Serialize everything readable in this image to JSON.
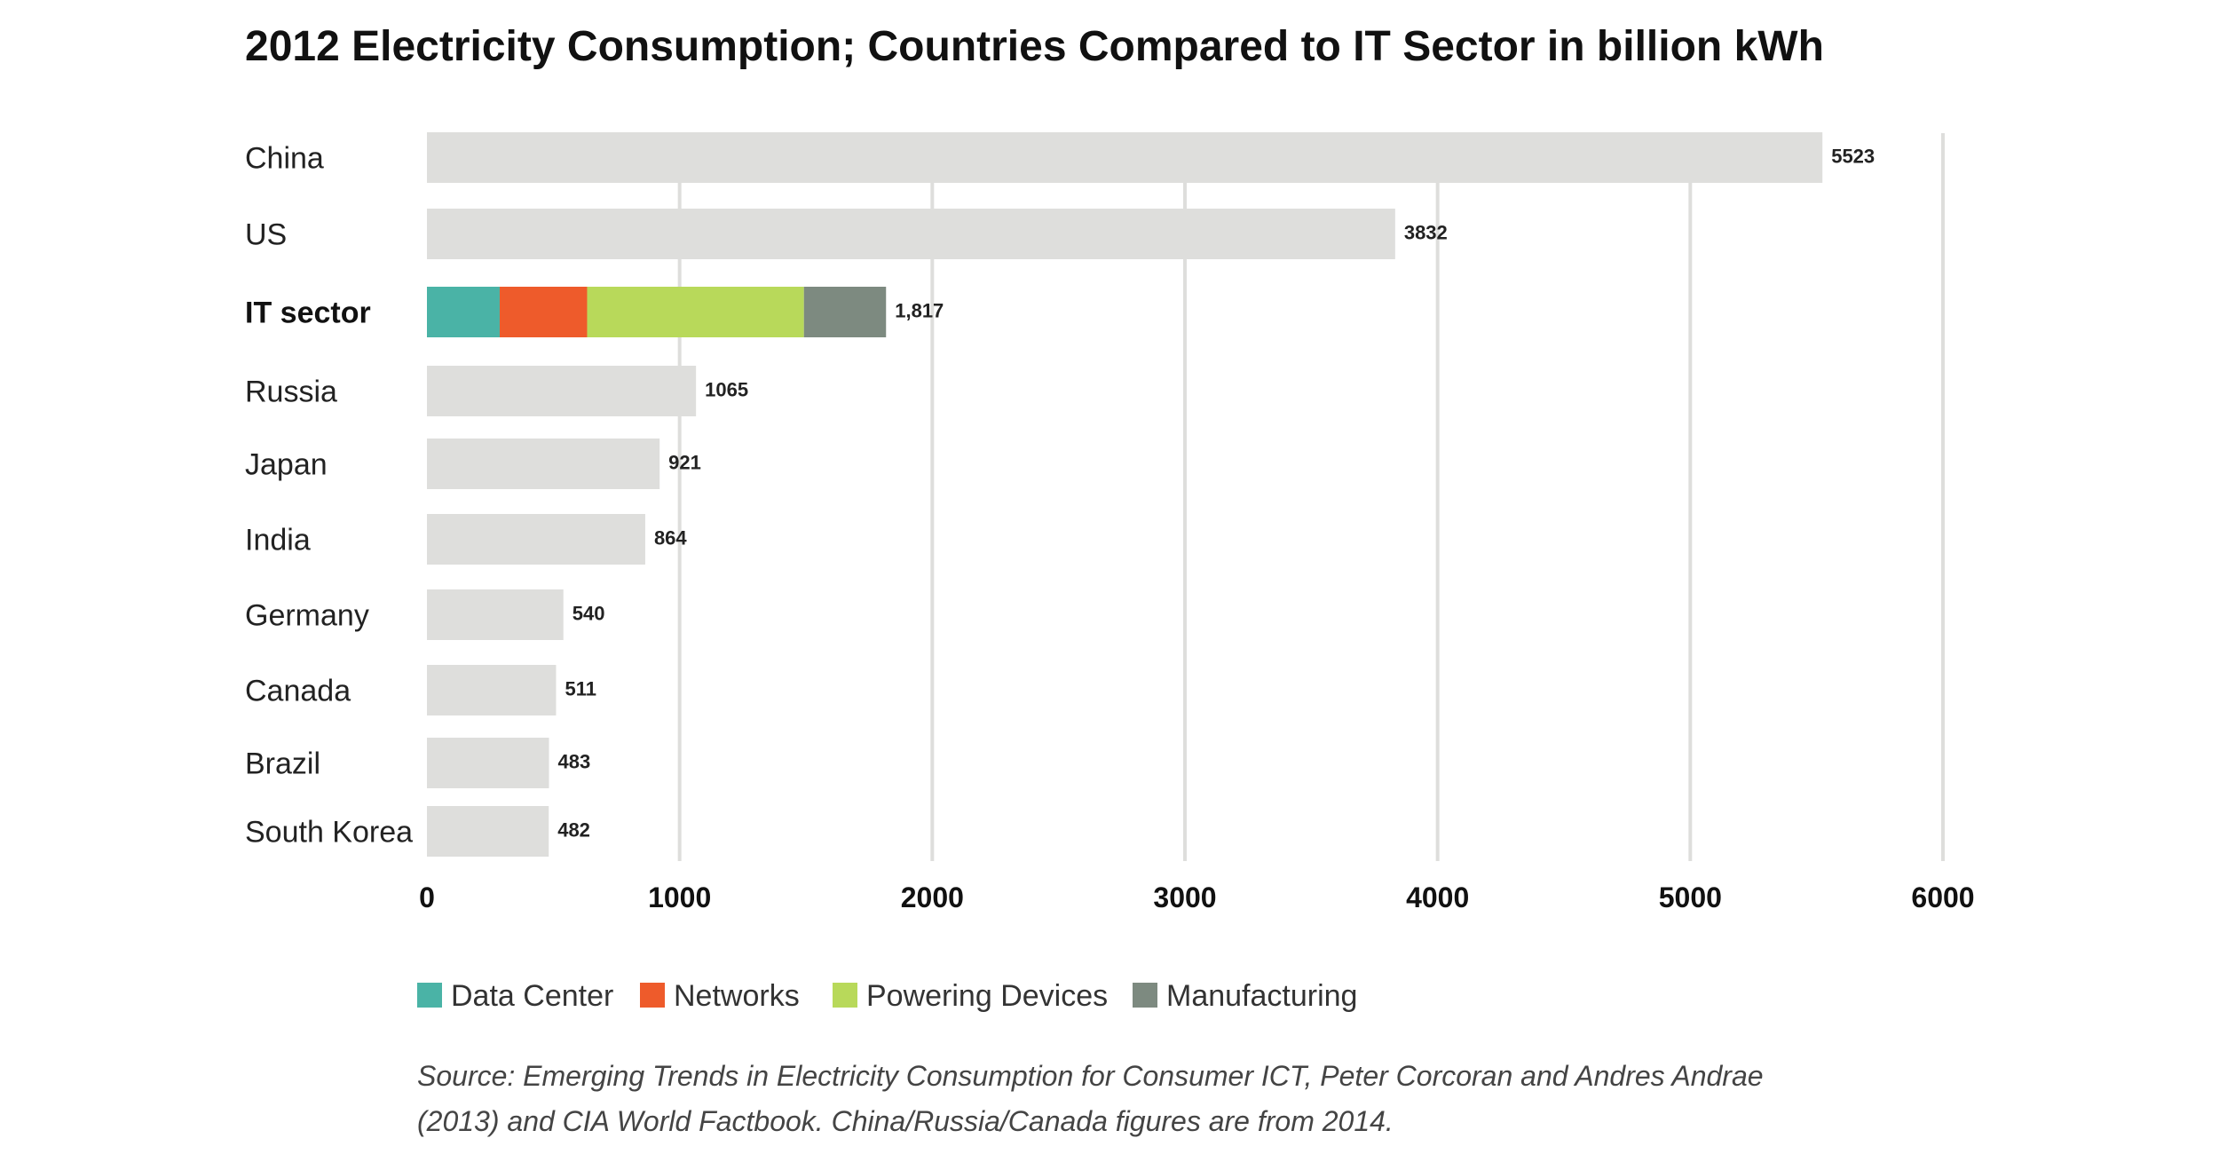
{
  "chart_data": {
    "type": "bar",
    "orientation": "horizontal",
    "title": "2012 Electricity Consumption; Countries Compared to IT Sector in billion kWh",
    "xlabel": "",
    "ylabel": "",
    "xlim": [
      0,
      6000
    ],
    "x_ticks": [
      "0",
      "1000",
      "2000",
      "3000",
      "4000",
      "5000",
      "6000"
    ],
    "grid": true,
    "categories": [
      "China",
      "US",
      "IT sector",
      "Russia",
      "Japan",
      "India",
      "Germany",
      "Canada",
      "Brazil",
      "South Korea"
    ],
    "values": [
      5523,
      3832,
      1817,
      1065,
      921,
      864,
      540,
      511,
      483,
      482
    ],
    "value_labels": [
      "5523",
      "3832",
      "1,817",
      "1065",
      "921",
      "864",
      "540",
      "511",
      "483",
      "482"
    ],
    "highlight_category": "IT sector",
    "it_sector_breakdown": {
      "series": [
        {
          "name": "Data Center",
          "value": 288
        },
        {
          "name": "Networks",
          "value": 346
        },
        {
          "name": "Powering Devices",
          "value": 858
        },
        {
          "name": "Manufacturing",
          "value": 325
        }
      ]
    },
    "legend": [
      "Data Center",
      "Networks",
      "Powering Devices",
      "Manufacturing"
    ],
    "legend_position": "bottom-left",
    "source_lines": [
      "Source: Emerging Trends in Electricity Consumption for Consumer ICT, Peter Corcoran and Andres Andrae",
      "(2013) and CIA World Factbook. China/Russia/Canada figures are from 2014."
    ]
  },
  "colors": {
    "bar": "#dededc",
    "grid": "#dededc",
    "Data Center": "#4ab3a6",
    "Networks": "#ee5b2b",
    "Powering Devices": "#b8d95a",
    "Manufacturing": "#7d8a80"
  }
}
